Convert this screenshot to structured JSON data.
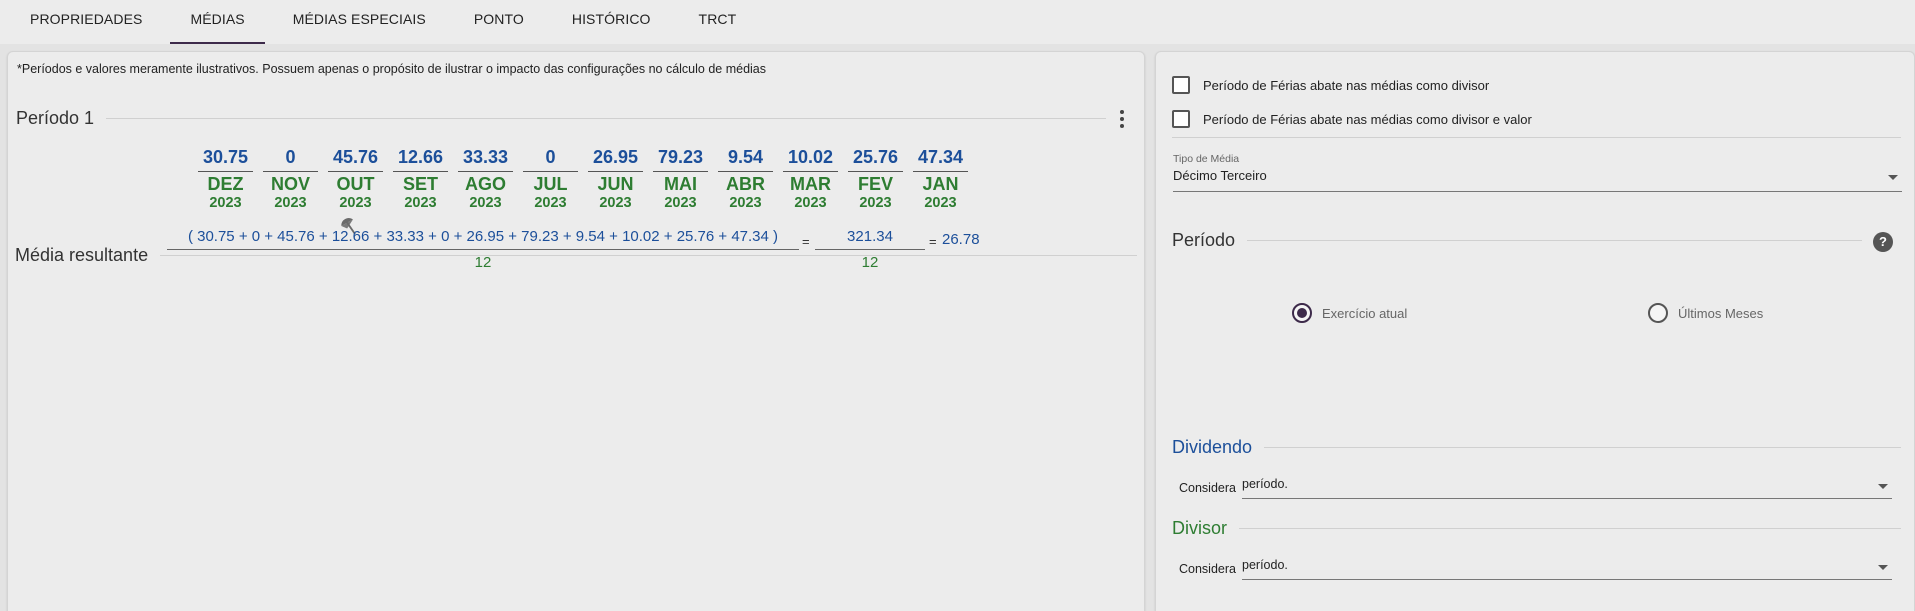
{
  "tabs": [
    {
      "label": "PROPRIEDADES"
    },
    {
      "label": "MÉDIAS"
    },
    {
      "label": "MÉDIAS ESPECIAIS"
    },
    {
      "label": "PONTO"
    },
    {
      "label": "HISTÓRICO"
    },
    {
      "label": "TRCT"
    }
  ],
  "left": {
    "note": "*Períodos e valores meramente ilustrativos. Possuem apenas o propósito de ilustrar o impacto das configurações no cálculo de médias",
    "period_title": "Período 1",
    "months": [
      {
        "value": "30.75",
        "name": "DEZ",
        "year": "2023"
      },
      {
        "value": "0",
        "name": "NOV",
        "year": "2023"
      },
      {
        "value": "45.76",
        "name": "OUT",
        "year": "2023"
      },
      {
        "value": "12.66",
        "name": "SET",
        "year": "2023"
      },
      {
        "value": "33.33",
        "name": "AGO",
        "year": "2023"
      },
      {
        "value": "0",
        "name": "JUL",
        "year": "2023"
      },
      {
        "value": "26.95",
        "name": "JUN",
        "year": "2023"
      },
      {
        "value": "79.23",
        "name": "MAI",
        "year": "2023"
      },
      {
        "value": "9.54",
        "name": "ABR",
        "year": "2023"
      },
      {
        "value": "10.02",
        "name": "MAR",
        "year": "2023"
      },
      {
        "value": "25.76",
        "name": "FEV",
        "year": "2023"
      },
      {
        "value": "47.34",
        "name": "JAN",
        "year": "2023"
      }
    ],
    "vacation_icon": "beach-umbrella-icon",
    "result_title": "Média resultante",
    "formula": {
      "numerator": "( 30.75 + 0 + 45.76 + 12.66 + 33.33 + 0 + 26.95 + 79.23 + 9.54 + 10.02 + 25.76 + 47.34 )",
      "denominator": "12",
      "eq1": "=",
      "sum": "321.34",
      "sum_denominator": "12",
      "eq2": "=",
      "result": "26.78"
    }
  },
  "right": {
    "checkbox1": "Período de Férias abate nas médias como divisor",
    "checkbox2": "Período de Férias abate nas médias como divisor e valor",
    "tipo_label": "Tipo de Média",
    "tipo_value": "Décimo Terceiro",
    "periodo_title": "Período",
    "help": "?",
    "radio1": "Exercício atual",
    "radio2": "Últimos Meses",
    "dividendo_title": "Dividendo",
    "dividendo_label": "Considera",
    "dividendo_value": "período.",
    "divisor_title": "Divisor",
    "divisor_label": "Considera",
    "divisor_value": "período."
  },
  "colors": {
    "value_blue": "#1c4f9a",
    "month_green": "#2e7d32",
    "accent_purple": "#3d2a4a"
  }
}
